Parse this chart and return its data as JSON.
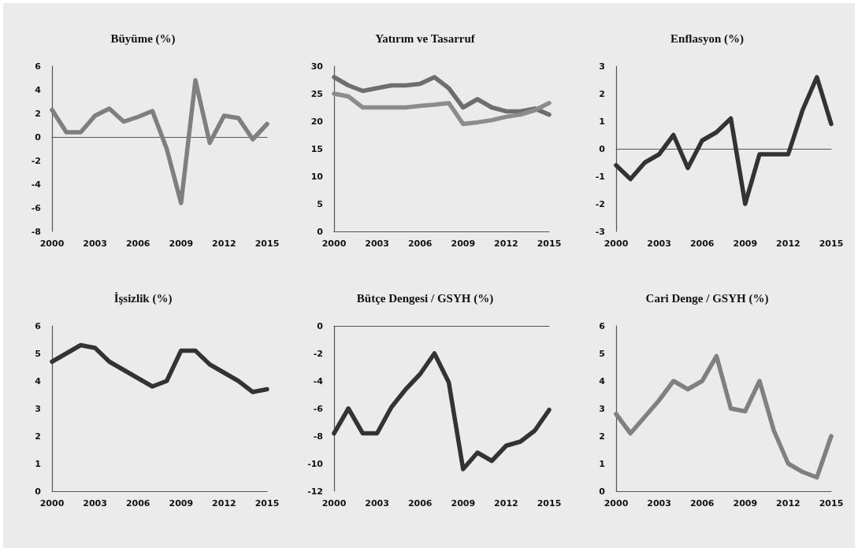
{
  "chart_data": [
    {
      "type": "line",
      "title": "Büyüme (%)",
      "x": [
        2000,
        2001,
        2002,
        2003,
        2004,
        2005,
        2006,
        2007,
        2008,
        2009,
        2010,
        2011,
        2012,
        2013,
        2014,
        2015
      ],
      "series": [
        {
          "color": "#7f7f7f",
          "values": [
            2.3,
            0.4,
            0.4,
            1.8,
            2.4,
            1.3,
            1.7,
            2.2,
            -1.0,
            -5.6,
            4.8,
            -0.5,
            1.8,
            1.6,
            -0.2,
            1.1
          ]
        }
      ],
      "xlim": [
        2000,
        2015
      ],
      "xticks": [
        2000,
        2003,
        2006,
        2009,
        2012,
        2015
      ],
      "ylim": [
        -8,
        6
      ],
      "yticks": [
        -8,
        -6,
        -4,
        -2,
        0,
        2,
        4,
        6
      ],
      "marker": "none",
      "line_style": "solid"
    },
    {
      "type": "line",
      "title": "Yatırım ve Tasarruf",
      "x": [
        2000,
        2001,
        2002,
        2003,
        2004,
        2005,
        2006,
        2007,
        2008,
        2009,
        2010,
        2011,
        2012,
        2013,
        2014,
        2015
      ],
      "series": [
        {
          "color": "#6e6e6e",
          "values": [
            28,
            26.5,
            25.5,
            26,
            26.5,
            26.5,
            26.8,
            28,
            26,
            22.5,
            24,
            22.5,
            21.8,
            21.8,
            22.3,
            21.2
          ]
        },
        {
          "color": "#8c8c8c",
          "values": [
            25,
            24.5,
            22.5,
            22.5,
            22.5,
            22.5,
            22.8,
            23,
            23.3,
            19.5,
            19.8,
            20.2,
            20.8,
            21.2,
            22,
            23.3
          ]
        }
      ],
      "xlim": [
        2000,
        2015
      ],
      "xticks": [
        2000,
        2003,
        2006,
        2009,
        2012,
        2015
      ],
      "ylim": [
        0,
        30
      ],
      "yticks": [
        0,
        5,
        10,
        15,
        20,
        25,
        30
      ],
      "marker": "none",
      "line_style": "solid"
    },
    {
      "type": "line",
      "title": "Enflasyon (%)",
      "x": [
        2000,
        2001,
        2002,
        2003,
        2004,
        2005,
        2006,
        2007,
        2008,
        2009,
        2010,
        2011,
        2012,
        2013,
        2014,
        2015
      ],
      "series": [
        {
          "color": "#333333",
          "values": [
            -0.6,
            -1.1,
            -0.5,
            -0.2,
            0.5,
            -0.7,
            0.3,
            0.6,
            1.1,
            -2.0,
            -0.2,
            -0.2,
            -0.2,
            1.4,
            2.6,
            0.9
          ]
        }
      ],
      "xlim": [
        2000,
        2015
      ],
      "xticks": [
        2000,
        2003,
        2006,
        2009,
        2012,
        2015
      ],
      "ylim": [
        -3,
        3
      ],
      "yticks": [
        -3,
        -2,
        -1,
        0,
        1,
        2,
        3
      ],
      "marker": "none",
      "line_style": "solid"
    },
    {
      "type": "line",
      "title": "İşsizlik (%)",
      "x": [
        2000,
        2001,
        2002,
        2003,
        2004,
        2005,
        2006,
        2007,
        2008,
        2009,
        2010,
        2011,
        2012,
        2013,
        2014,
        2015
      ],
      "series": [
        {
          "color": "#333333",
          "values": [
            4.7,
            5.0,
            5.3,
            5.2,
            4.7,
            4.4,
            4.1,
            3.8,
            4.0,
            5.1,
            5.1,
            4.6,
            4.3,
            4.0,
            3.6,
            3.7
          ]
        }
      ],
      "xlim": [
        2000,
        2015
      ],
      "xticks": [
        2000,
        2003,
        2006,
        2009,
        2012,
        2015
      ],
      "ylim": [
        0,
        6
      ],
      "yticks": [
        0,
        1,
        2,
        3,
        4,
        5,
        6
      ],
      "marker": "none",
      "line_style": "solid"
    },
    {
      "type": "line",
      "title": "Bütçe Dengesi / GSYH (%)",
      "x": [
        2000,
        2001,
        2002,
        2003,
        2004,
        2005,
        2006,
        2007,
        2008,
        2009,
        2010,
        2011,
        2012,
        2013,
        2014,
        2015
      ],
      "series": [
        {
          "color": "#333333",
          "values": [
            -7.8,
            -6.0,
            -7.8,
            -7.8,
            -5.9,
            -4.6,
            -3.5,
            -2.0,
            -4.1,
            -10.4,
            -9.2,
            -9.8,
            -8.7,
            -8.4,
            -7.6,
            -6.1
          ]
        }
      ],
      "xlim": [
        2000,
        2015
      ],
      "xticks": [
        2000,
        2003,
        2006,
        2009,
        2012,
        2015
      ],
      "ylim": [
        -12,
        0
      ],
      "yticks": [
        -12,
        -10,
        -8,
        -6,
        -4,
        -2,
        0
      ],
      "marker": "none",
      "line_style": "solid"
    },
    {
      "type": "line",
      "title": "Cari Denge / GSYH (%)",
      "x": [
        2000,
        2001,
        2002,
        2003,
        2004,
        2005,
        2006,
        2007,
        2008,
        2009,
        2010,
        2011,
        2012,
        2013,
        2014,
        2015
      ],
      "series": [
        {
          "color": "#808080",
          "values": [
            2.8,
            2.1,
            2.7,
            3.3,
            4.0,
            3.7,
            4.0,
            4.9,
            3.0,
            2.9,
            4.0,
            2.2,
            1.0,
            0.7,
            0.5,
            2.0
          ]
        }
      ],
      "xlim": [
        2000,
        2015
      ],
      "xticks": [
        2000,
        2003,
        2006,
        2009,
        2012,
        2015
      ],
      "ylim": [
        0,
        6
      ],
      "yticks": [
        0,
        1,
        2,
        3,
        4,
        5,
        6
      ],
      "marker": "none",
      "line_style": "solid"
    }
  ]
}
